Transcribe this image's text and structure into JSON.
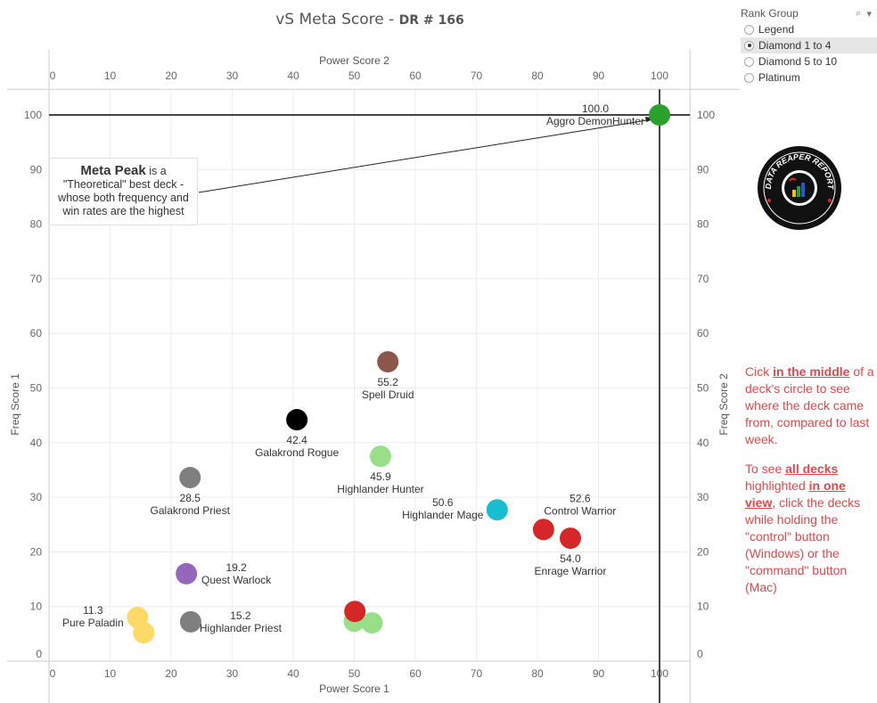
{
  "title": {
    "main": "vS Meta Score",
    "separator": " - ",
    "sub": "DR # 166"
  },
  "filter": {
    "title": "Rank Group",
    "search_icon": "search-icon",
    "dropdown_icon": "chevron-down-icon",
    "options": [
      {
        "label": "Legend",
        "selected": false
      },
      {
        "label": "Diamond 1 to 4",
        "selected": true
      },
      {
        "label": "Diamond 5 to 10",
        "selected": false
      },
      {
        "label": "Platinum",
        "selected": false
      }
    ]
  },
  "annotation": {
    "bold": "Meta Peak",
    "line1_rest": " is a",
    "line2": "\"Theoretical\" best deck -",
    "line3": "whose both frequency and",
    "line4": "win rates are the highest"
  },
  "logo": {
    "name": "Data Reaper Report logo",
    "text": "DATA REAPER REPORT"
  },
  "help": {
    "p1_a": "Cick ",
    "p1_u": "in the middle",
    "p1_b": " of a deck's circle to see where the deck came from, compared to last week.",
    "p2_a": "To see ",
    "p2_u1": "all decks ",
    "p2_b": " highlighted ",
    "p2_u2": "in one view",
    "p2_c": ", click the decks while holding the \"control\" button (Windows) or the \"command\" button (Mac)"
  },
  "chart_data": {
    "type": "scatter",
    "title": "vS Meta Score - DR # 166",
    "xlabel": "Power Score 1",
    "xlabel_top": "Power Score 2",
    "ylabel": "Freq Score 1",
    "ylabel_right": "Freq Score 2",
    "xlim": [
      0,
      105
    ],
    "ylim": [
      0,
      104.7
    ],
    "xticks": [
      0,
      10,
      20,
      30,
      40,
      50,
      60,
      70,
      80,
      90,
      100
    ],
    "yticks": [
      0,
      10,
      20,
      30,
      40,
      50,
      60,
      70,
      80,
      90,
      100
    ],
    "grid": true,
    "reference_lines": {
      "x": 100,
      "y": 100
    },
    "points": [
      {
        "name": "Aggro DemonHunter",
        "score": "100.0",
        "x": 100,
        "y": 100,
        "color": "#2ca02c",
        "label_pos": "left"
      },
      {
        "name": "Spell Druid",
        "score": "55.2",
        "x": 55.5,
        "y": 54.8,
        "color": "#8c564b",
        "label_pos": "below"
      },
      {
        "name": "Galakrond Rogue",
        "score": "42.4",
        "x": 40.6,
        "y": 44.2,
        "color": "#000000",
        "label_pos": "below"
      },
      {
        "name": "Highlander Hunter",
        "score": "45.9",
        "x": 54.3,
        "y": 37.5,
        "color": "#98df8a",
        "label_pos": "below"
      },
      {
        "name": "Galakrond Priest",
        "score": "28.5",
        "x": 23.1,
        "y": 33.6,
        "color": "#7f7f7f",
        "label_pos": "below"
      },
      {
        "name": "Highlander Mage",
        "score": "50.6",
        "x": 73.4,
        "y": 27.7,
        "color": "#17becf",
        "label_pos": "left"
      },
      {
        "name": "Control Warrior",
        "score": "52.6",
        "x": 81.0,
        "y": 24.1,
        "color": "#d62728",
        "label_pos": "above-right"
      },
      {
        "name": "Enrage Warrior",
        "score": "54.0",
        "x": 85.4,
        "y": 22.5,
        "color": "#d62728",
        "label_pos": "below"
      },
      {
        "name": "Quest Warlock",
        "score": "19.2",
        "x": 22.5,
        "y": 16.0,
        "color": "#9467bd",
        "label_pos": "right"
      },
      {
        "name": "Pure Paladin",
        "score": "11.3",
        "x": 14.5,
        "y": 8.0,
        "color": "#ffd966",
        "label_pos": "left"
      },
      {
        "name": "",
        "score": "",
        "x": 15.5,
        "y": 5.2,
        "color": "#ffd966",
        "label_pos": "none"
      },
      {
        "name": "Highlander Priest",
        "score": "15.2",
        "x": 23.2,
        "y": 7.2,
        "color": "#7f7f7f",
        "label_pos": "right"
      },
      {
        "name": "",
        "score": "",
        "x": 50.0,
        "y": 7.3,
        "color": "#98df8a",
        "label_pos": "none"
      },
      {
        "name": "",
        "score": "",
        "x": 52.9,
        "y": 7.0,
        "color": "#98df8a",
        "label_pos": "none"
      },
      {
        "name": "",
        "score": "",
        "x": 50.1,
        "y": 9.1,
        "color": "#d62728",
        "label_pos": "none"
      }
    ]
  }
}
